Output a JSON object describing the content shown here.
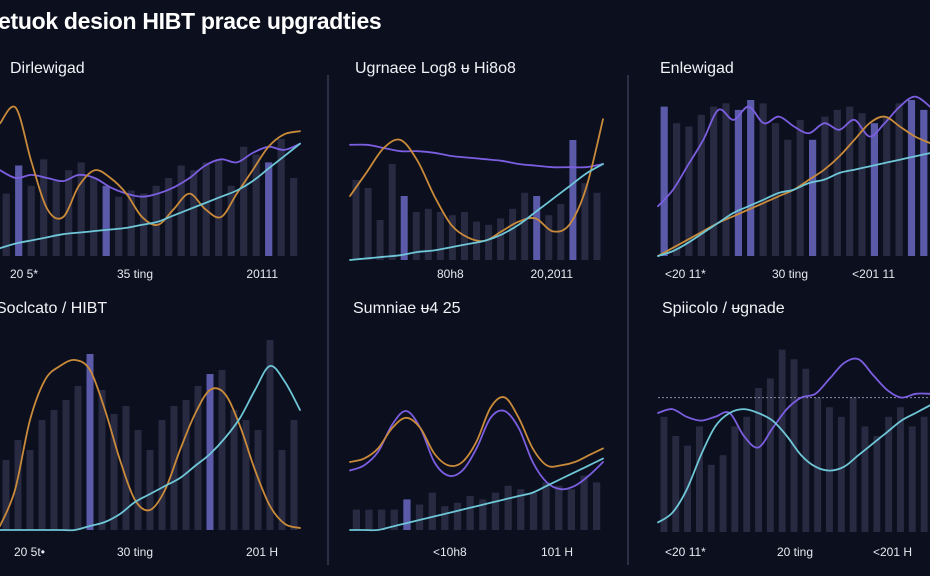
{
  "page": {
    "title": "etuok desion HIBT prace upgradties"
  },
  "colors": {
    "background": "#0b0f1e",
    "purple": "#7c5ee0",
    "orange": "#c98a3a",
    "cyan": "#6ec6d6",
    "bar": "#2a2e45",
    "bar_highlight": "#5f5fb0"
  },
  "chart_data": [
    {
      "type": "line",
      "title": "Dirlewigad",
      "x_ticks": [
        "20 5*",
        "35 ting",
        "20111"
      ],
      "ylim": [
        0,
        100
      ],
      "bars": [
        40,
        58,
        45,
        62,
        48,
        55,
        60,
        50,
        45,
        38,
        42,
        40,
        45,
        50,
        58,
        55,
        60,
        62,
        45,
        70,
        65,
        60,
        75,
        50
      ],
      "highlight_bars": [
        1,
        8,
        21
      ],
      "series": [
        {
          "color": "purple",
          "values": [
            55,
            50,
            52,
            50,
            48,
            52,
            50,
            44,
            40,
            38,
            40,
            44,
            50,
            58,
            62,
            60,
            66,
            70,
            68,
            72
          ]
        },
        {
          "color": "orange",
          "values": [
            85,
            95,
            60,
            30,
            25,
            45,
            55,
            50,
            40,
            25,
            20,
            30,
            40,
            30,
            25,
            40,
            55,
            70,
            78,
            80
          ]
        },
        {
          "color": "cyan",
          "values": [
            5,
            8,
            10,
            12,
            14,
            15,
            16,
            17,
            18,
            20,
            22,
            26,
            30,
            34,
            38,
            42,
            48,
            56,
            64,
            72
          ]
        }
      ]
    },
    {
      "type": "line",
      "title": "Ugrnaee Log8 ᵾ Hi8o8",
      "x_ticks": [
        "80h8",
        "20,2011"
      ],
      "ylim": [
        0,
        100
      ],
      "bars": [
        50,
        45,
        25,
        60,
        40,
        30,
        32,
        30,
        28,
        30,
        24,
        22,
        26,
        32,
        42,
        40,
        28,
        35,
        75,
        48,
        42
      ],
      "highlight_bars": [
        4,
        15,
        18
      ],
      "series": [
        {
          "color": "purple",
          "values": [
            72,
            72,
            70,
            68,
            68,
            67,
            65,
            64,
            63,
            62,
            60,
            59,
            58,
            58,
            58,
            60
          ]
        },
        {
          "color": "orange",
          "values": [
            40,
            55,
            70,
            75,
            62,
            40,
            22,
            14,
            12,
            18,
            24,
            26,
            18,
            22,
            45,
            88
          ]
        },
        {
          "color": "cyan",
          "values": [
            0,
            1,
            2,
            3,
            5,
            6,
            8,
            10,
            12,
            16,
            22,
            30,
            38,
            46,
            54,
            60
          ]
        }
      ]
    },
    {
      "type": "line",
      "title": "Enlewigad",
      "x_ticks": [
        "<20 11*",
        "30 ting",
        "<201 11"
      ],
      "ylim": [
        0,
        100
      ],
      "bars": [
        90,
        80,
        78,
        85,
        90,
        92,
        88,
        94,
        92,
        80,
        70,
        82,
        70,
        84,
        88,
        90,
        86,
        80,
        84,
        92,
        94,
        88
      ],
      "highlight_bars": [
        0,
        6,
        7,
        12,
        17,
        20,
        21
      ],
      "series": [
        {
          "color": "purple",
          "values": [
            30,
            40,
            55,
            70,
            88,
            82,
            90,
            80,
            84,
            78,
            74,
            80,
            76,
            82,
            72,
            80,
            90,
            96,
            90
          ]
        },
        {
          "color": "orange",
          "values": [
            0,
            5,
            10,
            15,
            20,
            24,
            28,
            32,
            36,
            40,
            46,
            52,
            60,
            70,
            80,
            84,
            78,
            72,
            68
          ]
        },
        {
          "color": "cyan",
          "values": [
            0,
            3,
            8,
            14,
            20,
            26,
            30,
            34,
            38,
            40,
            44,
            46,
            50,
            52,
            54,
            56,
            58,
            60,
            62
          ]
        }
      ]
    },
    {
      "type": "line",
      "title": "Soclcato / HIBT",
      "x_ticks": [
        "20 5t•",
        "30 ting",
        "201 H"
      ],
      "ylim": [
        0,
        100
      ],
      "bars": [
        35,
        45,
        40,
        55,
        60,
        65,
        72,
        88,
        70,
        58,
        62,
        50,
        40,
        55,
        62,
        65,
        72,
        78,
        80,
        60,
        55,
        50,
        95,
        40,
        55
      ],
      "highlight_bars": [
        7,
        17
      ],
      "series": [
        {
          "color": "orange",
          "values": [
            2,
            20,
            55,
            75,
            82,
            85,
            80,
            60,
            35,
            15,
            10,
            20,
            40,
            58,
            70,
            68,
            52,
            30,
            12,
            3,
            1
          ]
        },
        {
          "color": "cyan",
          "values": [
            0,
            0,
            0,
            0,
            0,
            0,
            2,
            4,
            8,
            14,
            18,
            22,
            26,
            32,
            38,
            46,
            56,
            70,
            82,
            74,
            60
          ]
        }
      ]
    },
    {
      "type": "line",
      "title": "Sumniae ᵾ4 25",
      "x_ticks": [
        "<10h8",
        "101 H"
      ],
      "ylim": [
        0,
        100
      ],
      "bars": [
        12,
        12,
        12,
        12,
        18,
        15,
        22,
        14,
        16,
        20,
        18,
        22,
        26,
        24,
        22,
        28,
        26,
        24,
        32,
        28
      ],
      "highlight_bars": [
        4
      ],
      "series": [
        {
          "color": "purple",
          "values": [
            35,
            38,
            46,
            62,
            70,
            60,
            40,
            32,
            35,
            48,
            66,
            70,
            60,
            40,
            28,
            24,
            26,
            32,
            40
          ]
        },
        {
          "color": "orange",
          "values": [
            40,
            42,
            48,
            60,
            66,
            60,
            45,
            38,
            40,
            52,
            72,
            78,
            66,
            48,
            38,
            38,
            40,
            44,
            48
          ]
        },
        {
          "color": "cyan",
          "values": [
            0,
            0,
            0,
            2,
            4,
            6,
            8,
            10,
            12,
            14,
            16,
            18,
            20,
            22,
            26,
            30,
            34,
            38,
            42
          ]
        }
      ]
    },
    {
      "type": "line",
      "title": "Spiicolo / ᵾgnade",
      "x_ticks": [
        "<20 11*",
        "20 ting",
        "<201 H"
      ],
      "ylim": [
        0,
        100
      ],
      "reference_line": 70,
      "bars": [
        60,
        50,
        45,
        55,
        35,
        40,
        55,
        60,
        75,
        80,
        95,
        90,
        85,
        70,
        65,
        60,
        70,
        55,
        50,
        60,
        65,
        55,
        60
      ],
      "highlight_bars": [],
      "series": [
        {
          "color": "purple",
          "values": [
            62,
            64,
            60,
            58,
            60,
            62,
            50,
            44,
            54,
            64,
            70,
            72,
            80,
            88,
            90,
            82,
            74,
            70,
            72,
            72
          ]
        },
        {
          "color": "cyan",
          "values": [
            5,
            10,
            22,
            40,
            55,
            62,
            64,
            62,
            58,
            50,
            40,
            34,
            32,
            34,
            40,
            46,
            52,
            58,
            62,
            66
          ]
        }
      ]
    }
  ]
}
